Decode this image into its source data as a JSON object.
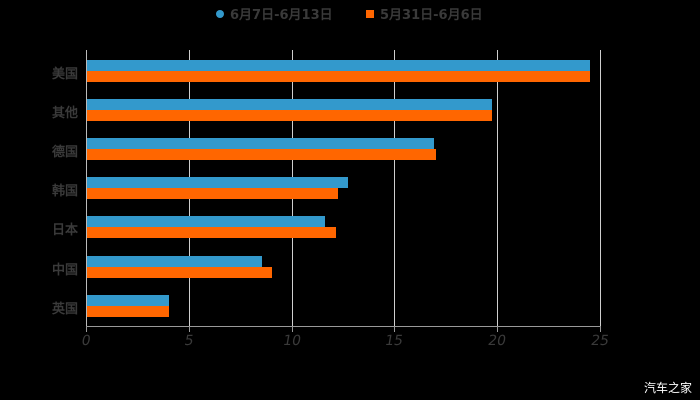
{
  "chart_data": {
    "type": "bar",
    "orientation": "horizontal",
    "title": "",
    "xlabel": "",
    "ylabel": "",
    "xlim": [
      0,
      25
    ],
    "x_ticks": [
      "0",
      "5",
      "10",
      "15",
      "20",
      "25"
    ],
    "grid": true,
    "legend_position": "top",
    "categories": [
      "美国",
      "其他",
      "德国",
      "韩国",
      "日本",
      "中国",
      "英国"
    ],
    "series": [
      {
        "name": "6月7日-6月13日",
        "color": "#3399cc",
        "marker": "circle",
        "values": [
          24.5,
          19.7,
          16.9,
          12.7,
          11.6,
          8.5,
          4.0
        ]
      },
      {
        "name": "5月31日-6月6日",
        "color": "#ff6600",
        "marker": "square",
        "values": [
          24.5,
          19.7,
          17.0,
          12.2,
          12.1,
          9.0,
          4.0
        ]
      }
    ]
  },
  "watermark": "汽车之家"
}
